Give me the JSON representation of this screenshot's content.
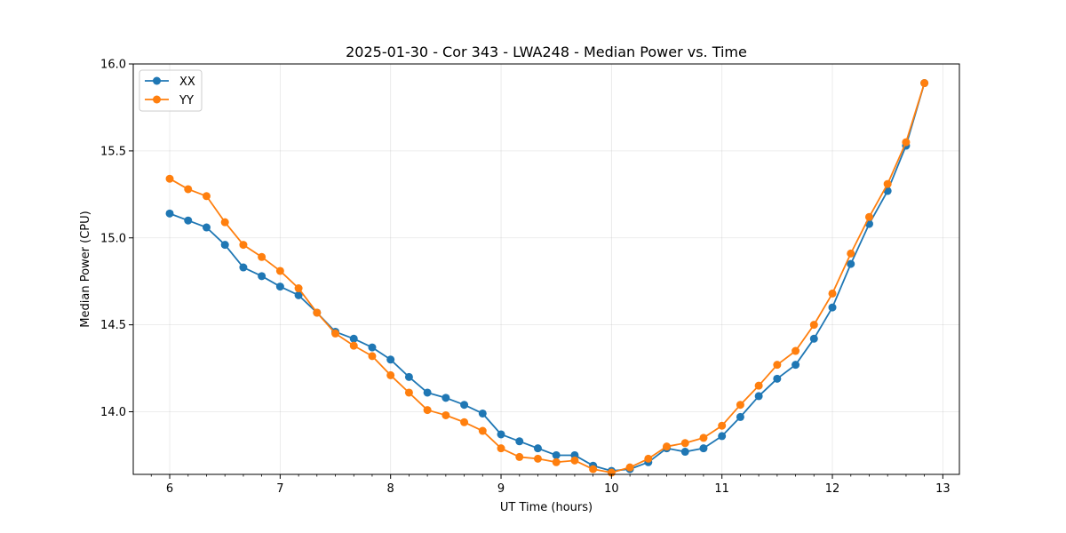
{
  "chart_data": {
    "type": "line",
    "title": "2025-01-30 - Cor 343 - LWA248 - Median Power vs. Time",
    "xlabel": "UT Time (hours)",
    "ylabel": "Median Power (CPU)",
    "xlim": [
      5.67,
      13.15
    ],
    "ylim": [
      13.64,
      16.0
    ],
    "xticks": [
      6,
      7,
      8,
      9,
      10,
      11,
      12,
      13
    ],
    "xtick_labels": [
      "6",
      "7",
      "8",
      "9",
      "10",
      "11",
      "12",
      "13"
    ],
    "yticks": [
      14.0,
      14.5,
      15.0,
      15.5,
      16.0
    ],
    "ytick_labels": [
      "14.0",
      "14.5",
      "15.0",
      "15.5",
      "16.0"
    ],
    "grid": true,
    "legend_position": "top-left",
    "x": [
      6.0,
      6.1667,
      6.3333,
      6.5,
      6.6667,
      6.8333,
      7.0,
      7.1667,
      7.3333,
      7.5,
      7.6667,
      7.8333,
      8.0,
      8.1667,
      8.3333,
      8.5,
      8.6667,
      8.8333,
      9.0,
      9.1667,
      9.3333,
      9.5,
      9.6667,
      9.8333,
      10.0,
      10.1667,
      10.3333,
      10.5,
      10.6667,
      10.8333,
      11.0,
      11.1667,
      11.3333,
      11.5,
      11.6667,
      11.8333,
      12.0,
      12.1667,
      12.3333,
      12.5,
      12.6667,
      12.8333
    ],
    "series": [
      {
        "name": "XX",
        "color": "#1f77b4",
        "values": [
          15.14,
          15.1,
          15.06,
          14.96,
          14.83,
          14.78,
          14.72,
          14.67,
          14.57,
          14.46,
          14.42,
          14.37,
          14.3,
          14.2,
          14.11,
          14.08,
          14.04,
          13.99,
          13.87,
          13.83,
          13.79,
          13.75,
          13.75,
          13.69,
          13.66,
          13.67,
          13.71,
          13.79,
          13.77,
          13.79,
          13.86,
          13.97,
          14.09,
          14.19,
          14.27,
          14.42,
          14.6,
          14.85,
          15.08,
          15.27,
          15.53,
          15.89
        ]
      },
      {
        "name": "YY",
        "color": "#ff7f0e",
        "values": [
          15.34,
          15.28,
          15.24,
          15.09,
          14.96,
          14.89,
          14.81,
          14.71,
          14.57,
          14.45,
          14.38,
          14.32,
          14.21,
          14.11,
          14.01,
          13.98,
          13.94,
          13.89,
          13.79,
          13.74,
          13.73,
          13.71,
          13.72,
          13.67,
          13.65,
          13.68,
          13.73,
          13.8,
          13.82,
          13.85,
          13.92,
          14.04,
          14.15,
          14.27,
          14.35,
          14.5,
          14.68,
          14.91,
          15.12,
          15.31,
          15.55,
          15.89
        ]
      }
    ]
  }
}
